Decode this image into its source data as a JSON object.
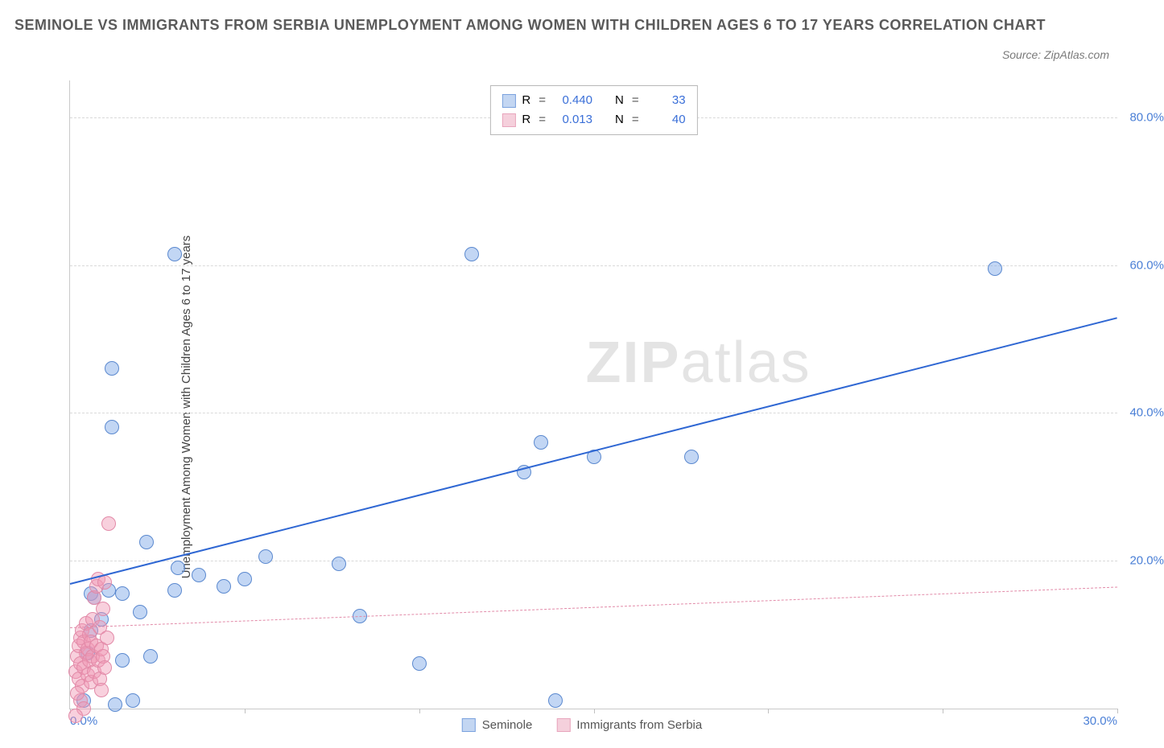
{
  "title": "SEMINOLE VS IMMIGRANTS FROM SERBIA UNEMPLOYMENT AMONG WOMEN WITH CHILDREN AGES 6 TO 17 YEARS CORRELATION CHART",
  "source": "Source: ZipAtlas.com",
  "y_axis_label": "Unemployment Among Women with Children Ages 6 to 17 years",
  "watermark_bold": "ZIP",
  "watermark_light": "atlas",
  "chart": {
    "type": "scatter",
    "xlim": [
      0,
      30
    ],
    "ylim": [
      0,
      85
    ],
    "x_ticks": [
      0,
      5,
      10,
      15,
      20,
      25,
      30
    ],
    "x_tick_labels": [
      "0.0%",
      "",
      "",
      "",
      "",
      "",
      "30.0%"
    ],
    "y_ticks": [
      20,
      40,
      60,
      80
    ],
    "y_tick_labels": [
      "20.0%",
      "40.0%",
      "60.0%",
      "80.0%"
    ],
    "grid_color": "#d9d9d9",
    "axis_color": "#c9c9c9",
    "background_color": "#ffffff",
    "tick_label_color": "#4a7fd6",
    "marker_radius": 9,
    "marker_opacity": 0.55,
    "series": [
      {
        "name": "Seminole",
        "color_fill": "rgba(120,165,230,0.45)",
        "color_stroke": "#5b89cf",
        "swatch_fill": "#c3d6f2",
        "swatch_stroke": "#7ba2de",
        "R": "0.440",
        "N": "33",
        "trend": {
          "x1": 0,
          "y1": 17,
          "x2": 30,
          "y2": 53,
          "stroke": "#2f67d3",
          "width": 2.4,
          "dash": "solid"
        },
        "points": [
          [
            0.6,
            17.5
          ],
          [
            0.7,
            17.0
          ],
          [
            0.6,
            12.5
          ],
          [
            1.1,
            18.0
          ],
          [
            1.2,
            48.0
          ],
          [
            1.2,
            40.0
          ],
          [
            0.5,
            9.5
          ],
          [
            0.4,
            3.0
          ],
          [
            1.3,
            2.5
          ],
          [
            1.5,
            8.5
          ],
          [
            1.5,
            17.5
          ],
          [
            2.0,
            15.0
          ],
          [
            0.9,
            14.0
          ],
          [
            2.2,
            24.5
          ],
          [
            2.3,
            9.0
          ],
          [
            3.0,
            18.0
          ],
          [
            3.1,
            21.0
          ],
          [
            3.0,
            63.5
          ],
          [
            3.7,
            20.0
          ],
          [
            4.4,
            18.5
          ],
          [
            5.0,
            19.5
          ],
          [
            5.6,
            22.5
          ],
          [
            7.7,
            21.5
          ],
          [
            8.3,
            14.5
          ],
          [
            10.0,
            8.0
          ],
          [
            11.5,
            63.5
          ],
          [
            13.0,
            34.0
          ],
          [
            13.5,
            38.0
          ],
          [
            13.9,
            3.0
          ],
          [
            15.0,
            36.0
          ],
          [
            17.8,
            36.0
          ],
          [
            26.5,
            61.5
          ],
          [
            1.8,
            3.0
          ]
        ]
      },
      {
        "name": "Immigrants from Serbia",
        "color_fill": "rgba(240,150,180,0.45)",
        "color_stroke": "#e28aa8",
        "swatch_fill": "#f5d0dc",
        "swatch_stroke": "#e8a6bd",
        "R": "0.013",
        "N": "40",
        "trend": {
          "x1": 0,
          "y1": 11,
          "x2": 30,
          "y2": 16.5,
          "stroke": "#e28aa8",
          "width": 1.2,
          "dash": "dashed"
        },
        "points": [
          [
            0.15,
            7.0
          ],
          [
            0.2,
            9.0
          ],
          [
            0.25,
            10.5
          ],
          [
            0.25,
            6.0
          ],
          [
            0.3,
            11.5
          ],
          [
            0.3,
            8.0
          ],
          [
            0.35,
            12.5
          ],
          [
            0.35,
            5.0
          ],
          [
            0.4,
            11.0
          ],
          [
            0.4,
            7.5
          ],
          [
            0.45,
            9.5
          ],
          [
            0.45,
            13.5
          ],
          [
            0.5,
            6.5
          ],
          [
            0.5,
            10.0
          ],
          [
            0.55,
            8.5
          ],
          [
            0.55,
            12.0
          ],
          [
            0.6,
            5.5
          ],
          [
            0.6,
            11.0
          ],
          [
            0.65,
            9.0
          ],
          [
            0.65,
            14.0
          ],
          [
            0.7,
            7.0
          ],
          [
            0.7,
            17.0
          ],
          [
            0.75,
            10.5
          ],
          [
            0.75,
            18.5
          ],
          [
            0.8,
            8.5
          ],
          [
            0.8,
            19.5
          ],
          [
            0.85,
            6.0
          ],
          [
            0.85,
            13.0
          ],
          [
            0.9,
            10.0
          ],
          [
            0.9,
            4.5
          ],
          [
            0.95,
            9.0
          ],
          [
            0.95,
            15.5
          ],
          [
            1.0,
            7.5
          ],
          [
            1.0,
            19.0
          ],
          [
            1.05,
            11.5
          ],
          [
            1.1,
            27.0
          ],
          [
            0.3,
            3.0
          ],
          [
            0.4,
            2.0
          ],
          [
            0.2,
            4.0
          ],
          [
            0.15,
            1.0
          ]
        ]
      }
    ]
  },
  "legend_top": {
    "R_label": "R",
    "N_label": "N",
    "eq": "="
  },
  "legend_bottom": {
    "items": [
      "Seminole",
      "Immigrants from Serbia"
    ]
  }
}
